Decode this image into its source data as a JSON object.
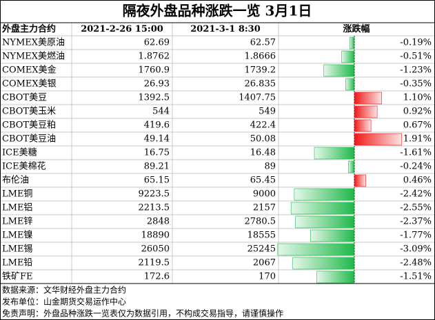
{
  "title": "隔夜外盘品种涨跌一览 3月1日",
  "table": {
    "header": [
      "外盘主力合约",
      "2021-2-26 15:00",
      "2021-3-1 8:30",
      "涨跌幅"
    ],
    "rows": [
      {
        "name": "NYMEX美原油",
        "prev": "62.69",
        "curr": "62.57",
        "change": -0.19,
        "change_label": "-0.19%"
      },
      {
        "name": "NYMEX美燃油",
        "prev": "1.8762",
        "curr": "1.8666",
        "change": -0.51,
        "change_label": "-0.51%"
      },
      {
        "name": "COMEX美金",
        "prev": "1760.9",
        "curr": "1739.2",
        "change": -1.23,
        "change_label": "-1.23%"
      },
      {
        "name": "COMEX美银",
        "prev": "26.93",
        "curr": "26.835",
        "change": -0.35,
        "change_label": "-0.35%"
      },
      {
        "name": "CBOT美豆",
        "prev": "1392.5",
        "curr": "1407.75",
        "change": 1.1,
        "change_label": "1.10%"
      },
      {
        "name": "CBOT美玉米",
        "prev": "544",
        "curr": "549",
        "change": 0.92,
        "change_label": "0.92%"
      },
      {
        "name": "CBOT美豆粕",
        "prev": "419.6",
        "curr": "422.4",
        "change": 0.67,
        "change_label": "0.67%"
      },
      {
        "name": "CBOT美豆油",
        "prev": "49.14",
        "curr": "50.08",
        "change": 1.91,
        "change_label": "1.91%"
      },
      {
        "name": "ICE美糖",
        "prev": "16.75",
        "curr": "16.48",
        "change": -1.61,
        "change_label": "-1.61%"
      },
      {
        "name": "ICE美棉花",
        "prev": "89.21",
        "curr": "89",
        "change": -0.24,
        "change_label": "-0.24%"
      },
      {
        "name": "布伦油",
        "prev": "65.15",
        "curr": "65.45",
        "change": 0.46,
        "change_label": "0.46%"
      },
      {
        "name": "LME铜",
        "prev": "9223.5",
        "curr": "9000",
        "change": -2.42,
        "change_label": "-2.42%"
      },
      {
        "name": "LME铝",
        "prev": "2213.5",
        "curr": "2157",
        "change": -2.55,
        "change_label": "-2.55%"
      },
      {
        "name": "LME锌",
        "prev": "2848",
        "curr": "2780.5",
        "change": -2.37,
        "change_label": "-2.37%"
      },
      {
        "name": "LME镍",
        "prev": "18890",
        "curr": "18555",
        "change": -1.77,
        "change_label": "-1.77%"
      },
      {
        "name": "LME锡",
        "prev": "26050",
        "curr": "25245",
        "change": -3.09,
        "change_label": "-3.09%"
      },
      {
        "name": "LME铅",
        "prev": "2119.5",
        "curr": "2067",
        "change": -2.48,
        "change_label": "-2.48%"
      },
      {
        "name": "铁矿FE",
        "prev": "172.6",
        "curr": "170",
        "change": -1.51,
        "change_label": "-1.51%"
      }
    ]
  },
  "notes": [
    "数据来源：文华财经外盘主力合约",
    "发布单位：山金期货交易运作中心",
    "免责声明：外盘品种涨跌一览表仅为数据引用，不构成交易指导，请谨慎操作"
  ]
}
